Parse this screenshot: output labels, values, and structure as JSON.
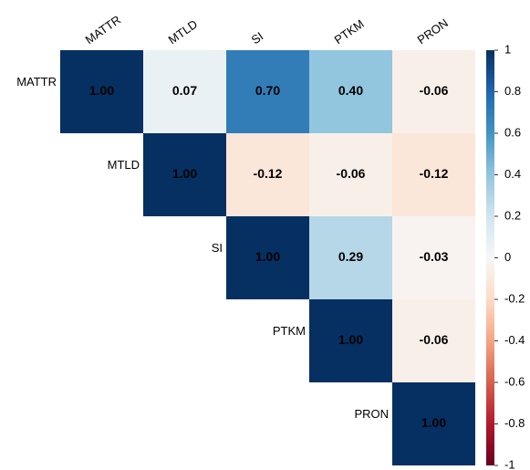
{
  "chart_data": {
    "type": "heatmap",
    "categories": [
      "MATTR",
      "MTLD",
      "SI",
      "PTKM",
      "PRON"
    ],
    "values": [
      [
        1,
        0.07,
        0.7,
        0.4,
        -0.06
      ],
      [
        null,
        1,
        -0.12,
        -0.06,
        -0.12
      ],
      [
        null,
        null,
        1,
        0.29,
        -0.03
      ],
      [
        null,
        null,
        null,
        1,
        -0.06
      ],
      [
        null,
        null,
        null,
        null,
        1
      ]
    ],
    "value_labels": [
      [
        "1.00",
        "0.07",
        "0.70",
        "0.40",
        "-0.06"
      ],
      [
        null,
        "1.00",
        "-0.12",
        "-0.06",
        "-0.12"
      ],
      [
        null,
        null,
        "1.00",
        "0.29",
        "-0.03"
      ],
      [
        null,
        null,
        null,
        "1.00",
        "-0.06"
      ],
      [
        null,
        null,
        null,
        null,
        "1.00"
      ]
    ],
    "clim": [
      -1,
      1
    ],
    "cticks": [
      1,
      0.8,
      0.6,
      0.4,
      0.2,
      0,
      -0.2,
      -0.4,
      -0.6,
      -0.8,
      -1
    ],
    "colors": [
      "#67001f",
      "#b2182b",
      "#d6604d",
      "#f4a582",
      "#fddbc7",
      "#f7f7f7",
      "#d1e5f0",
      "#92c5de",
      "#4393c3",
      "#2166ac",
      "#053061"
    ]
  }
}
